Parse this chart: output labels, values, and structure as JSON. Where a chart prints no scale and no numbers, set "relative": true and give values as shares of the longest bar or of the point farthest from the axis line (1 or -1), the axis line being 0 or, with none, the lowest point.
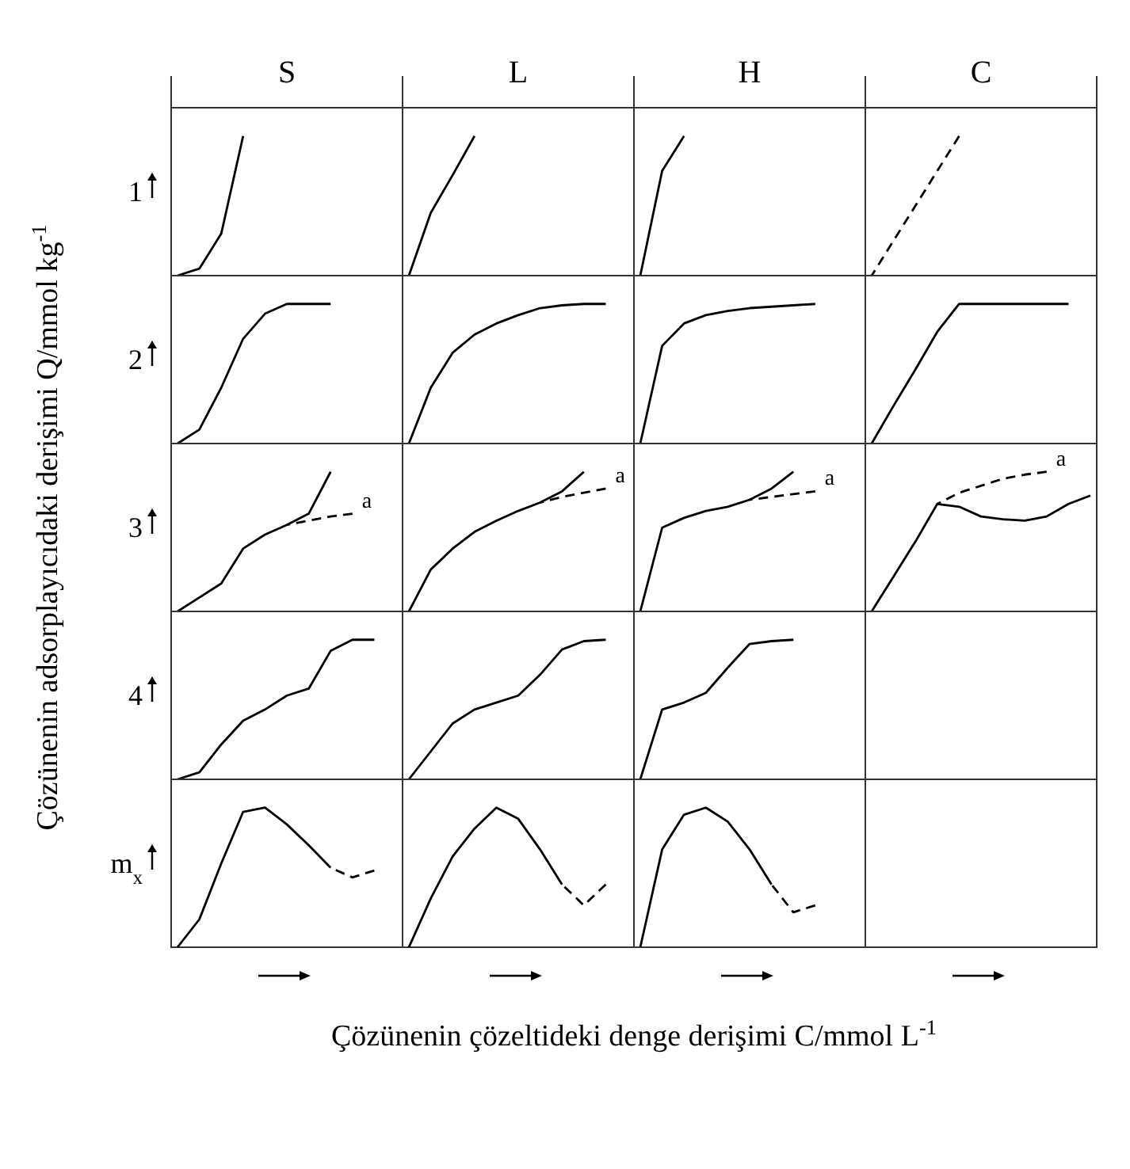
{
  "chart_data": [
    {
      "type": "line",
      "ylabel": "1",
      "relative": true,
      "categories": [
        null,
        null,
        null,
        null
      ],
      "series": [
        {
          "color": "#000000",
          "values": [
            0,
            0.05,
            0.3,
            1
          ]
        }
      ]
    },
    {
      "type": "line",
      "relative": true,
      "categories": [
        null,
        null,
        null,
        null
      ],
      "series": [
        {
          "color": "#000000",
          "values": [
            0,
            0.45,
            0.72,
            1
          ]
        }
      ]
    },
    {
      "type": "line",
      "relative": true,
      "categories": [
        null,
        null,
        null
      ],
      "series": [
        {
          "color": "#000000",
          "values": [
            0,
            0.75,
            1
          ]
        }
      ]
    },
    {
      "type": "line",
      "relative": true,
      "categories": [
        null,
        null,
        null,
        null,
        null
      ],
      "series": [
        {
          "color": "#000000",
          "line_style": "dashed",
          "values": [
            0,
            0.25,
            0.5,
            0.75,
            1
          ]
        }
      ]
    },
    {
      "type": "line",
      "ylabel": "2",
      "relative": true,
      "categories": [
        null,
        null,
        null,
        null,
        null,
        null,
        null,
        null
      ],
      "series": [
        {
          "color": "#000000",
          "values": [
            0,
            0.1,
            0.4,
            0.75,
            0.93,
            1,
            1,
            1
          ]
        }
      ]
    },
    {
      "type": "line",
      "relative": true,
      "categories": [
        null,
        null,
        null,
        null,
        null,
        null,
        null,
        null,
        null,
        null
      ],
      "series": [
        {
          "color": "#000000",
          "values": [
            0,
            0.4,
            0.65,
            0.78,
            0.86,
            0.92,
            0.97,
            0.99,
            1,
            1
          ]
        }
      ]
    },
    {
      "type": "line",
      "relative": true,
      "categories": [
        null,
        null,
        null,
        null,
        null,
        null,
        null,
        null,
        null
      ],
      "series": [
        {
          "color": "#000000",
          "values": [
            0,
            0.7,
            0.86,
            0.92,
            0.95,
            0.97,
            0.98,
            0.99,
            1
          ]
        }
      ]
    },
    {
      "type": "line",
      "relative": true,
      "categories": [
        null,
        null,
        null,
        null,
        null,
        null,
        null,
        null,
        null,
        null
      ],
      "series": [
        {
          "color": "#000000",
          "values": [
            0,
            0.27,
            0.53,
            0.8,
            1,
            1,
            1,
            1,
            1,
            1
          ]
        }
      ]
    },
    {
      "type": "line",
      "ylabel": "3",
      "relative": true,
      "annotations": [
        "a"
      ],
      "categories": [
        null,
        null,
        null,
        null,
        null,
        null,
        null,
        null,
        null
      ],
      "series": [
        {
          "color": "#000000",
          "values": [
            0,
            0.1,
            0.2,
            0.45,
            0.55,
            0.62,
            0.7,
            1,
            null
          ]
        },
        {
          "color": "#000000",
          "line_style": "dashed",
          "values": [
            null,
            null,
            null,
            null,
            null,
            0.62,
            0.65,
            0.68,
            0.7
          ]
        }
      ]
    },
    {
      "type": "line",
      "relative": true,
      "annotations": [
        "a"
      ],
      "categories": [
        null,
        null,
        null,
        null,
        null,
        null,
        null,
        null,
        null,
        null
      ],
      "series": [
        {
          "color": "#000000",
          "values": [
            0,
            0.3,
            0.45,
            0.57,
            0.65,
            0.72,
            0.78,
            0.86,
            1,
            null
          ]
        },
        {
          "color": "#000000",
          "line_style": "dashed",
          "values": [
            null,
            null,
            null,
            null,
            null,
            null,
            0.78,
            0.82,
            0.85,
            0.88
          ]
        }
      ]
    },
    {
      "type": "line",
      "relative": true,
      "annotations": [
        "a"
      ],
      "categories": [
        null,
        null,
        null,
        null,
        null,
        null,
        null,
        null,
        null
      ],
      "series": [
        {
          "color": "#000000",
          "values": [
            0,
            0.6,
            0.67,
            0.72,
            0.75,
            0.8,
            0.88,
            1,
            null
          ]
        },
        {
          "color": "#000000",
          "line_style": "dashed",
          "values": [
            null,
            null,
            null,
            null,
            null,
            0.8,
            0.82,
            0.84,
            0.86
          ]
        }
      ]
    },
    {
      "type": "line",
      "relative": true,
      "annotations": [
        "a"
      ],
      "categories": [
        null,
        null,
        null,
        null,
        null,
        null,
        null,
        null,
        null,
        null,
        null
      ],
      "series": [
        {
          "color": "#000000",
          "values": [
            0,
            0.25,
            0.5,
            0.77,
            0.75,
            0.68,
            0.66,
            0.65,
            0.68,
            0.77,
            0.83
          ]
        },
        {
          "color": "#000000",
          "line_style": "dashed",
          "values": [
            null,
            null,
            null,
            0.77,
            0.85,
            0.9,
            0.95,
            0.98,
            1,
            null,
            null
          ]
        }
      ]
    },
    {
      "type": "line",
      "ylabel": "4",
      "relative": true,
      "categories": [
        null,
        null,
        null,
        null,
        null,
        null,
        null,
        null,
        null,
        null
      ],
      "series": [
        {
          "color": "#000000",
          "values": [
            0,
            0.05,
            0.25,
            0.42,
            0.5,
            0.6,
            0.65,
            0.92,
            1,
            1
          ]
        }
      ]
    },
    {
      "type": "line",
      "relative": true,
      "categories": [
        null,
        null,
        null,
        null,
        null,
        null,
        null,
        null,
        null,
        null
      ],
      "series": [
        {
          "color": "#000000",
          "values": [
            0,
            0.2,
            0.4,
            0.5,
            0.55,
            0.6,
            0.75,
            0.93,
            0.99,
            1
          ]
        }
      ]
    },
    {
      "type": "line",
      "relative": true,
      "categories": [
        null,
        null,
        null,
        null,
        null,
        null,
        null,
        null
      ],
      "series": [
        {
          "color": "#000000",
          "values": [
            0,
            0.5,
            0.55,
            0.62,
            0.8,
            0.97,
            0.99,
            1
          ]
        }
      ]
    },
    {
      "type": "other"
    },
    {
      "type": "line",
      "ylabel": "m$_{x}$",
      "relative": true,
      "categories": [
        null,
        null,
        null,
        null,
        null,
        null,
        null,
        null,
        null,
        null
      ],
      "series": [
        {
          "color": "#000000",
          "values": [
            0,
            0.2,
            0.6,
            0.97,
            1,
            0.88,
            0.73,
            0.57,
            null,
            null
          ]
        },
        {
          "color": "#000000",
          "line_style": "dashed",
          "values": [
            null,
            null,
            null,
            null,
            null,
            null,
            null,
            0.57,
            0.5,
            0.55
          ]
        }
      ]
    },
    {
      "type": "line",
      "relative": true,
      "categories": [
        null,
        null,
        null,
        null,
        null,
        null,
        null,
        null,
        null,
        null
      ],
      "series": [
        {
          "color": "#000000",
          "values": [
            0,
            0.35,
            0.65,
            0.85,
            1,
            0.92,
            0.7,
            0.45,
            null,
            null
          ]
        },
        {
          "color": "#000000",
          "line_style": "dashed",
          "values": [
            null,
            null,
            null,
            null,
            null,
            null,
            null,
            0.45,
            0.3,
            0.45
          ]
        }
      ]
    },
    {
      "type": "line",
      "relative": true,
      "categories": [
        null,
        null,
        null,
        null,
        null,
        null,
        null,
        null,
        null
      ],
      "series": [
        {
          "color": "#000000",
          "values": [
            0,
            0.7,
            0.95,
            1,
            0.9,
            0.7,
            0.45,
            null,
            null
          ]
        },
        {
          "color": "#000000",
          "line_style": "dashed",
          "values": [
            null,
            null,
            null,
            null,
            null,
            null,
            0.45,
            0.25,
            0.3
          ]
        }
      ]
    },
    {
      "type": "other"
    },
    {
      "type": "other",
      "annotations": [
        "S",
        "L",
        "H",
        "C"
      ],
      "xlabel": "Çözünenin çözeltideki denge derişimi C/mmol L$^{-1}$",
      "ylabel": "Çözünenin adsorplayıcıdaki derişimi Q/mmol kg$^{-1}$"
    }
  ]
}
